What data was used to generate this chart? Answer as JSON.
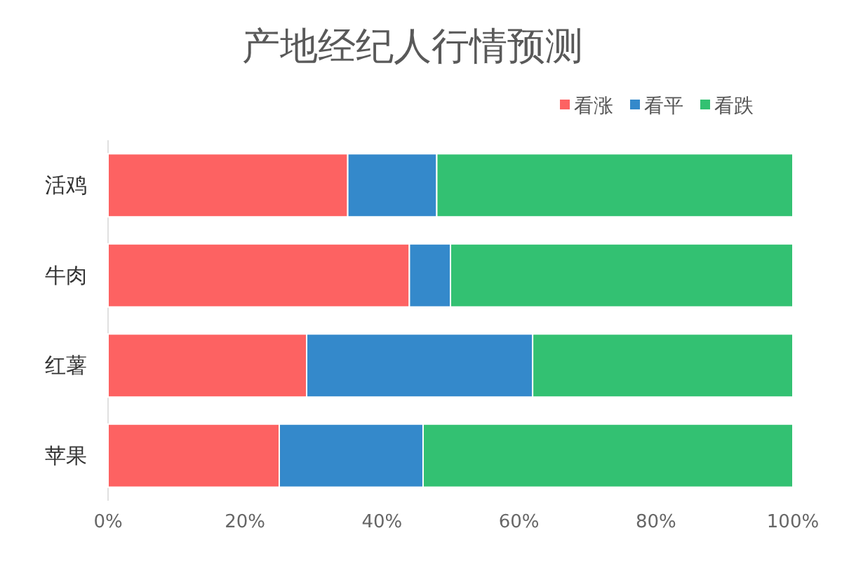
{
  "chart_data": {
    "type": "bar",
    "title": "产地经纪人行情预测",
    "orientation": "horizontal",
    "stacked": true,
    "categories": [
      "活鸡",
      "牛肉",
      "红薯",
      "苹果"
    ],
    "series": [
      {
        "name": "看涨",
        "color": "#fd6262",
        "values": [
          35,
          44,
          29,
          25
        ]
      },
      {
        "name": "看平",
        "color": "#3489cb",
        "values": [
          13,
          6,
          33,
          21
        ]
      },
      {
        "name": "看跌",
        "color": "#33c172",
        "values": [
          52,
          50,
          38,
          54
        ]
      }
    ],
    "xlim": [
      0,
      100
    ],
    "xticks": [
      {
        "value": 0,
        "label": "0%"
      },
      {
        "value": 20,
        "label": "20%"
      },
      {
        "value": 40,
        "label": "40%"
      },
      {
        "value": 60,
        "label": "60%"
      },
      {
        "value": 80,
        "label": "80%"
      },
      {
        "value": 100,
        "label": "100%"
      }
    ],
    "legend": "top right"
  }
}
